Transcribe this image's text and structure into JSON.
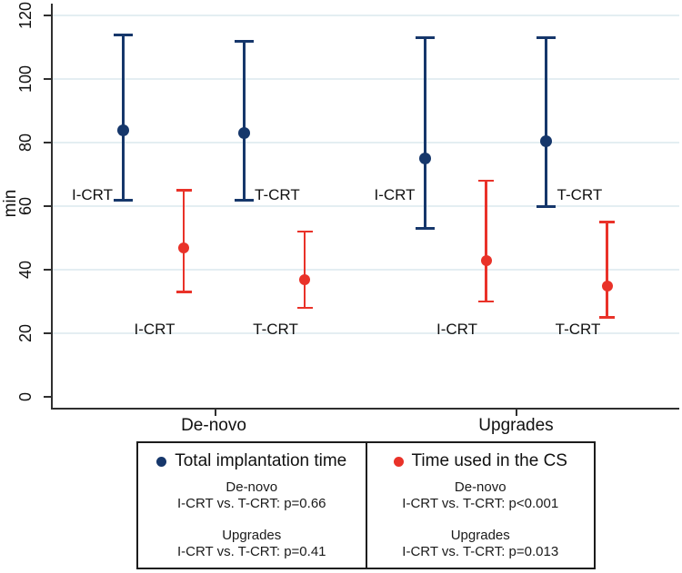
{
  "chart_data": {
    "type": "scatter",
    "subtype": "errorbar",
    "title": "",
    "xlabel": "",
    "ylabel": "min",
    "ylim": [
      0,
      120
    ],
    "yticks": [
      0,
      20,
      40,
      60,
      80,
      100,
      120
    ],
    "grid": "horizontal",
    "legend_position": "bottom",
    "x_groups": [
      "De-novo",
      "Upgrades"
    ],
    "colors": {
      "total_implantation_time": "#16376b",
      "time_used_in_cs": "#e93229"
    },
    "series": [
      {
        "name": "Total implantation time",
        "color": "#16376b",
        "points": [
          {
            "group": "De-novo",
            "arm": "I-CRT",
            "value": 84,
            "lo": 62,
            "hi": 114
          },
          {
            "group": "De-novo",
            "arm": "T-CRT",
            "value": 83,
            "lo": 62,
            "hi": 112
          },
          {
            "group": "Upgrades",
            "arm": "I-CRT",
            "value": 75,
            "lo": 53,
            "hi": 113
          },
          {
            "group": "Upgrades",
            "arm": "T-CRT",
            "value": 80.5,
            "lo": 60,
            "hi": 113
          }
        ]
      },
      {
        "name": "Time used in the CS",
        "color": "#e93229",
        "points": [
          {
            "group": "De-novo",
            "arm": "I-CRT",
            "value": 47,
            "lo": 33,
            "hi": 65
          },
          {
            "group": "De-novo",
            "arm": "T-CRT",
            "value": 37,
            "lo": 28,
            "hi": 52
          },
          {
            "group": "Upgrades",
            "arm": "I-CRT",
            "value": 43,
            "lo": 30,
            "hi": 68
          },
          {
            "group": "Upgrades",
            "arm": "T-CRT",
            "value": 35,
            "lo": 25,
            "hi": 55
          }
        ]
      }
    ],
    "legend": {
      "left": {
        "title": "Total implantation time",
        "lines": [
          "De-novo",
          "I-CRT vs. T-CRT: p=0.66",
          "Upgrades",
          "I-CRT vs. T-CRT: p=0.41"
        ]
      },
      "right": {
        "title": "Time used in the CS",
        "lines": [
          "De-novo",
          "I-CRT vs. T-CRT: p<0.001",
          "Upgrades",
          "I-CRT vs. T-CRT: p=0.013"
        ]
      }
    }
  }
}
